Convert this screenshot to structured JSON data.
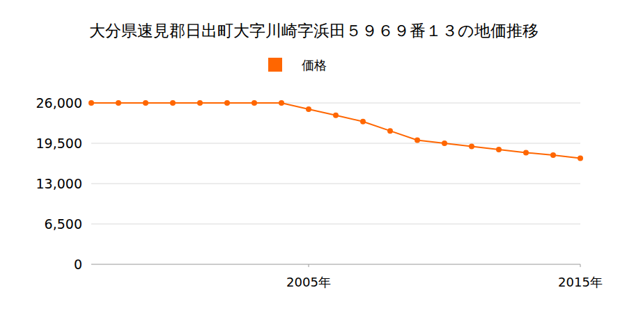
{
  "chart_data": {
    "type": "line",
    "title": "大分県速見郡日出町大字川崎字浜田５９６９番１３の地価推移",
    "x": [
      1997,
      1998,
      1999,
      2000,
      2001,
      2002,
      2003,
      2004,
      2005,
      2006,
      2007,
      2008,
      2009,
      2010,
      2011,
      2012,
      2013,
      2014,
      2015
    ],
    "series": [
      {
        "name": "価格",
        "color": "#ff6600",
        "marker": "circle",
        "values": [
          26000,
          26000,
          26000,
          26000,
          26000,
          26000,
          26000,
          26000,
          25000,
          24000,
          23000,
          21500,
          20000,
          19500,
          19000,
          18500,
          18000,
          17600,
          17100
        ]
      }
    ],
    "xlim": [
      1997,
      2015
    ],
    "xticks": [
      {
        "value": 2005,
        "label": "2005年"
      },
      {
        "value": 2015,
        "label": "2015年"
      }
    ],
    "ylim": [
      0,
      26000
    ],
    "yticks": [
      0,
      {
        "value": 6500,
        "label": "6,500"
      },
      {
        "value": 13000,
        "label": "13,000"
      },
      {
        "value": 19500,
        "label": "19,500"
      },
      {
        "value": 26000,
        "label": "26,000"
      }
    ],
    "grid": true,
    "legend": "top"
  }
}
